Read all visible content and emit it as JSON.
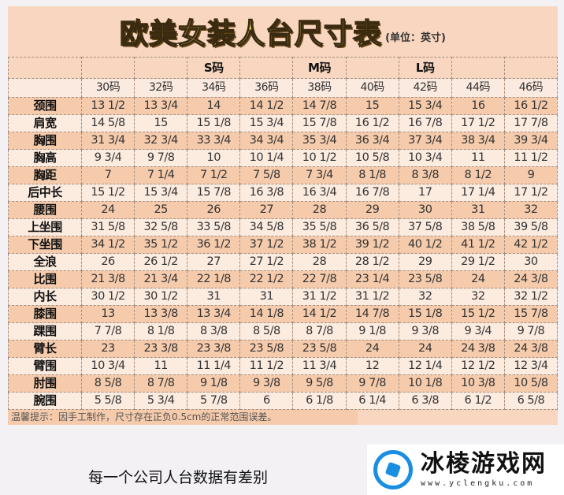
{
  "title": "欧美女装人台尺寸表",
  "unit": "(单位：英寸)",
  "groups": [
    "",
    "",
    "",
    "S码",
    "",
    "M码",
    "",
    "L码",
    "",
    ""
  ],
  "sizes": [
    "30码",
    "32码",
    "34码",
    "36码",
    "38码",
    "40码",
    "42码",
    "44码",
    "46码"
  ],
  "rows": [
    {
      "label": "颈围",
      "values": [
        "13 1/2",
        "13 3/4",
        "14",
        "14 1/2",
        "14 7/8",
        "15",
        "15 3/4",
        "16",
        "16 1/2"
      ]
    },
    {
      "label": "肩宽",
      "values": [
        "14 5/8",
        "15",
        "15 1/8",
        "15 3/4",
        "15 7/8",
        "16 1/2",
        "16 7/8",
        "17 1/2",
        "17 7/8"
      ]
    },
    {
      "label": "胸围",
      "values": [
        "31 3/4",
        "32 3/4",
        "33 3/4",
        "34 3/4",
        "35 3/4",
        "36 3/4",
        "37 3/4",
        "38 3/4",
        "39 3/4"
      ]
    },
    {
      "label": "胸高",
      "values": [
        "9 3/4",
        "9 7/8",
        "10",
        "10 1/4",
        "10 1/2",
        "10 5/8",
        "10 3/4",
        "11",
        "11 1/2"
      ]
    },
    {
      "label": "胸距",
      "values": [
        "7",
        "7 1/4",
        "7 1/2",
        "7 5/8",
        "7 3/4",
        "8 1/8",
        "8 3/8",
        "8 1/2",
        "9"
      ]
    },
    {
      "label": "后中长",
      "values": [
        "15 1/2",
        "15 3/4",
        "15 7/8",
        "16 3/8",
        "16 3/4",
        "16 7/8",
        "17",
        "17 1/4",
        "17 1/2"
      ]
    },
    {
      "label": "腰围",
      "values": [
        "24",
        "25",
        "26",
        "27",
        "28",
        "29",
        "30",
        "31",
        "32"
      ]
    },
    {
      "label": "上坐围",
      "values": [
        "31 5/8",
        "32 5/8",
        "33 5/8",
        "34 5/8",
        "35 5/8",
        "36 5/8",
        "37 5/8",
        "38 5/8",
        "39 5/8"
      ]
    },
    {
      "label": "下坐围",
      "values": [
        "34 1/2",
        "35 1/2",
        "36 1/2",
        "37 1/2",
        "38 1/2",
        "39 1/2",
        "40 1/2",
        "41 1/2",
        "42 1/2"
      ]
    },
    {
      "label": "全浪",
      "values": [
        "26",
        "26 1/2",
        "27",
        "27 1/2",
        "28",
        "28 1/2",
        "29",
        "29 1/2",
        "30"
      ]
    },
    {
      "label": "比围",
      "values": [
        "21 3/8",
        "21 3/4",
        "22 1/8",
        "22 1/2",
        "22 7/8",
        "23 1/4",
        "23 5/8",
        "24",
        "24 3/8"
      ]
    },
    {
      "label": "内长",
      "values": [
        "30 1/2",
        "30 1/2",
        "31",
        "31",
        "31 1/2",
        "31 1/2",
        "32",
        "32",
        "32 1/2"
      ]
    },
    {
      "label": "膝围",
      "values": [
        "13",
        "13 3/8",
        "13 3/4",
        "14 1/8",
        "14 1/2",
        "14 7/8",
        "15 1/8",
        "15 1/2",
        "15 7/8"
      ]
    },
    {
      "label": "踝围",
      "values": [
        "7 7/8",
        "8 1/8",
        "8 3/8",
        "8 5/8",
        "8 7/8",
        "9 1/8",
        "9 3/8",
        "9 3/4",
        "9 7/8"
      ]
    },
    {
      "label": "臂长",
      "values": [
        "23",
        "23 3/8",
        "23 3/8",
        "23 5/8",
        "23 5/8",
        "24",
        "24",
        "24 3/8",
        "24 3/8"
      ]
    },
    {
      "label": "臂围",
      "values": [
        "10 3/4",
        "11",
        "11 1/4",
        "11 1/2",
        "11 3/4",
        "12",
        "12 1/4",
        "12 1/2",
        "12 3/4"
      ]
    },
    {
      "label": "肘围",
      "values": [
        "8 5/8",
        "8 7/8",
        "9 1/8",
        "9 3/8",
        "9 5/8",
        "9 7/8",
        "10 1/8",
        "10 3/8",
        "10 5/8"
      ]
    },
    {
      "label": "腕围",
      "values": [
        "5 5/8",
        "5 3/4",
        "5 7/8",
        "6",
        "6 1/8",
        "6 1/4",
        "6 3/8",
        "6 1/2",
        "6 5/8"
      ]
    }
  ],
  "note": "温馨提示：因手工制作，尺寸存在正负0.5cm的正常范围误差。",
  "caption": "每一个公司人台数据有差别",
  "watermark": {
    "name": "冰棱游戏网",
    "url": "www.yclengku.com"
  }
}
